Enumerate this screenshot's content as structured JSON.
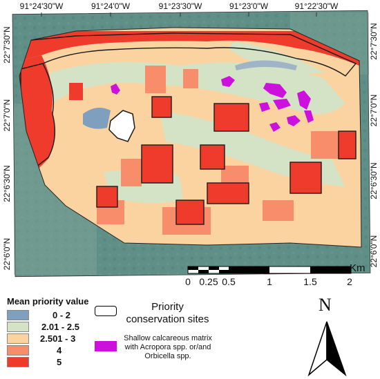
{
  "coordinates": {
    "top": [
      "91°24'30\"W",
      "91°24'0\"W",
      "91°23'30\"W",
      "91°23'0\"W",
      "91°22'30\"W"
    ],
    "left": [
      "22°7'30\"N",
      "22°7'0\"N",
      "22°6'30\"N",
      "22°6'0\"N"
    ],
    "right": [
      "22°7'30\"N",
      "22°7'0\"N",
      "22°6'30\"N",
      "22°6'0\"N"
    ]
  },
  "scale_bar": {
    "labels": [
      "0",
      "0.25",
      "0.5",
      "1",
      "1.5",
      "2"
    ],
    "unit": "Km"
  },
  "legend": {
    "title": "Mean priority value",
    "classes": [
      {
        "label": "0 - 2",
        "color": "#7f9fbf"
      },
      {
        "label": "2.01 - 2.5",
        "color": "#d4e3c6"
      },
      {
        "label": "2.501 - 3",
        "color": "#fbd3a0"
      },
      {
        "label": "4",
        "color": "#f78d6a"
      },
      {
        "label": "5",
        "color": "#ee3b2c"
      }
    ],
    "priority_sites": "Priority conservation sites",
    "calcareous": "Shallow calcareous matrix with Acropora spp. or/and Orbicella spp.",
    "calcareous_color": "#cc11dd"
  },
  "north_arrow": {
    "letter": "N"
  },
  "colors": {
    "sea": "#5f8f87",
    "outline": "#1a1a1a"
  }
}
